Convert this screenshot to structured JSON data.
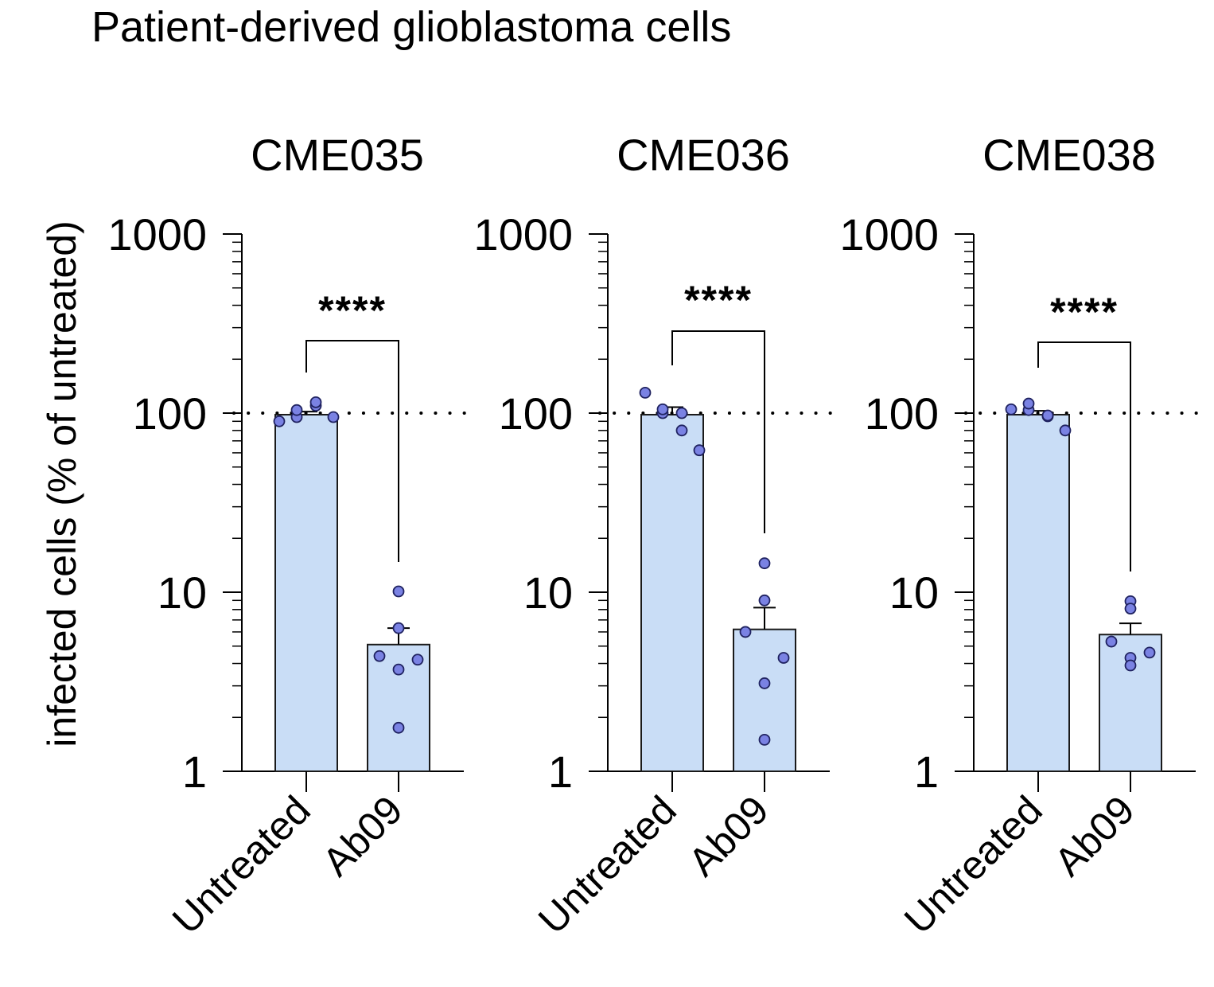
{
  "figure": {
    "title": "Patient-derived glioblastoma cells",
    "ylabel": "infected cells (% of untreated)"
  },
  "colors": {
    "bar_fill": "#c9ddf6",
    "bar_stroke": "#1a1a1a",
    "point_fill": "#7a82e3",
    "point_stroke": "#1f2260",
    "axis": "#000000"
  },
  "chart_data": [
    {
      "type": "bar",
      "title": "CME035",
      "categories": [
        "Untreated",
        "Ab09"
      ],
      "values": [
        98,
        5.1
      ],
      "sem": [
        4,
        1.2
      ],
      "points": [
        [
          90,
          95,
          104,
          110,
          115,
          95
        ],
        [
          10.1,
          6.3,
          4.4,
          4.2,
          3.7,
          1.75
        ]
      ],
      "yscale": "log",
      "ylim": [
        1,
        1000
      ],
      "yticks": [
        "1",
        "10",
        "100",
        "1000"
      ],
      "reference_line": 100,
      "significance": "****",
      "xlabel": "",
      "ylabel": "infected cells (% of untreated)"
    },
    {
      "type": "bar",
      "title": "CME036",
      "categories": [
        "Untreated",
        "Ab09"
      ],
      "values": [
        98,
        6.2
      ],
      "sem": [
        10,
        2.0
      ],
      "points": [
        [
          130,
          100,
          105,
          80,
          100,
          62
        ],
        [
          14.5,
          9.0,
          6.0,
          4.3,
          3.1,
          1.5
        ]
      ],
      "yscale": "log",
      "ylim": [
        1,
        1000
      ],
      "yticks": [
        "1",
        "10",
        "100",
        "1000"
      ],
      "reference_line": 100,
      "significance": "****",
      "xlabel": "",
      "ylabel": "infected cells (% of untreated)"
    },
    {
      "type": "bar",
      "title": "CME038",
      "categories": [
        "Untreated",
        "Ab09"
      ],
      "values": [
        98,
        5.8
      ],
      "sem": [
        5,
        0.9
      ],
      "points": [
        [
          105,
          104,
          113,
          96,
          97,
          80
        ],
        [
          8.9,
          8.1,
          5.3,
          4.6,
          4.3,
          3.9
        ]
      ],
      "yscale": "log",
      "ylim": [
        1,
        1000
      ],
      "yticks": [
        "1",
        "10",
        "100",
        "1000"
      ],
      "reference_line": 100,
      "significance": "****",
      "xlabel": "",
      "ylabel": "infected cells (% of untreated)"
    }
  ]
}
